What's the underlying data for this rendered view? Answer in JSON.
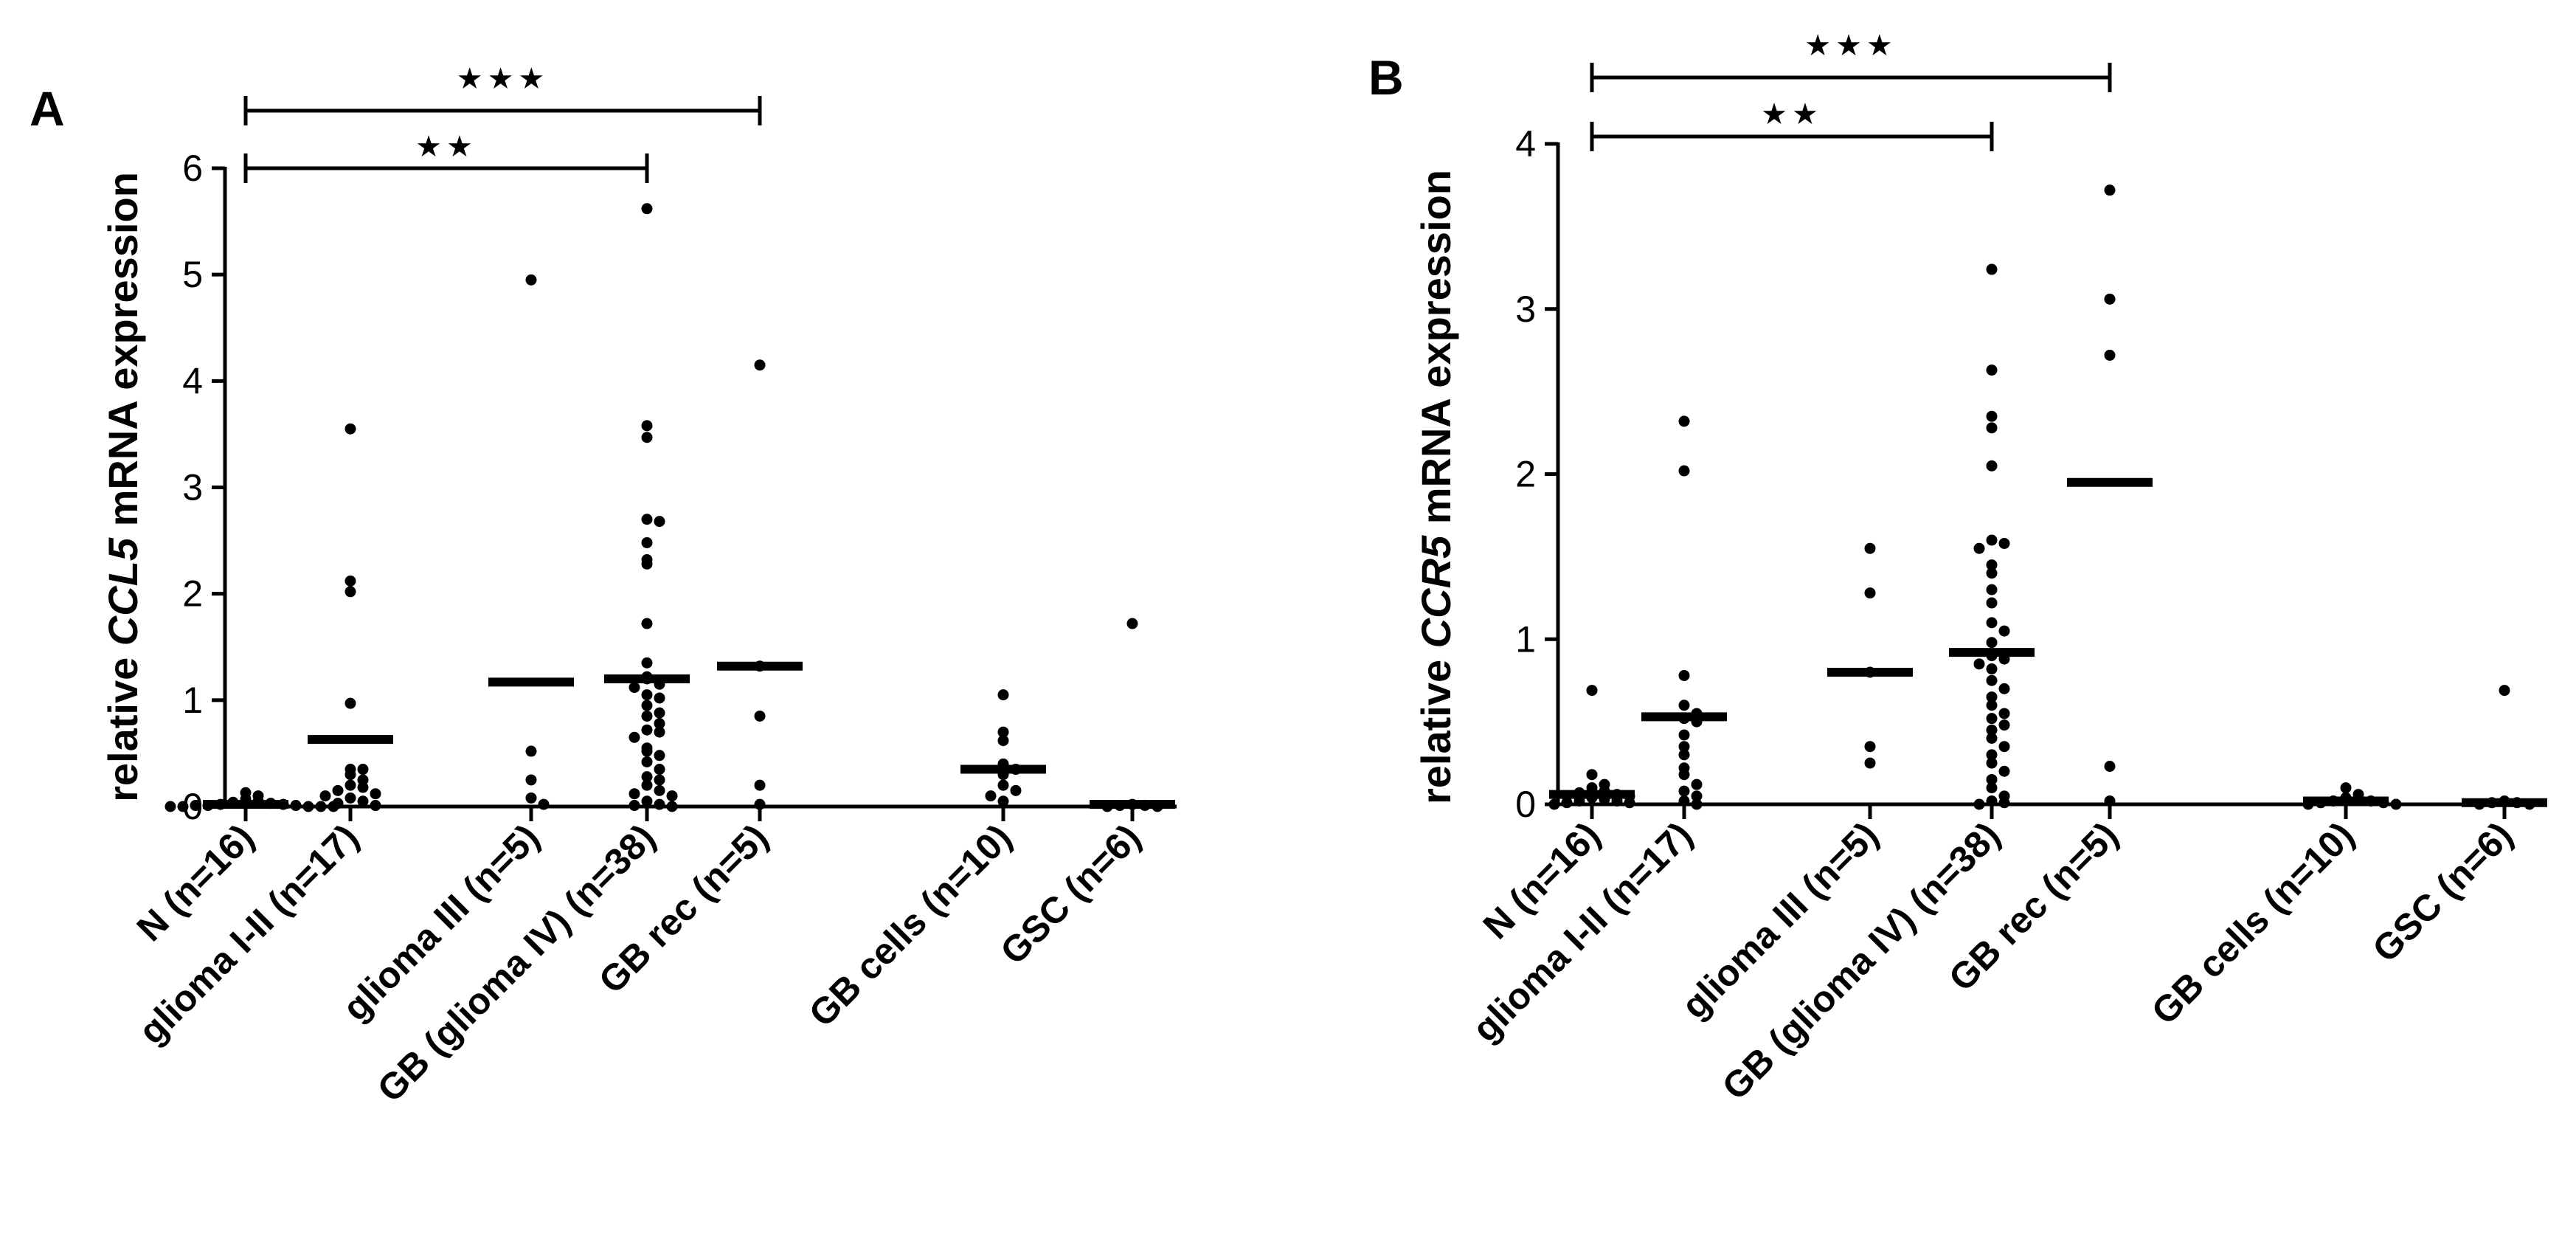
{
  "chart_data": [
    {
      "panel_label": "A",
      "type": "scatter",
      "gene": "CCL5",
      "ylabel_prefix": "relative ",
      "ylabel_suffix": " mRNA expression",
      "ylim": [
        0,
        6
      ],
      "yticks": [
        "0",
        "1",
        "2",
        "3",
        "4",
        "5",
        "6"
      ],
      "categories": [
        {
          "label": "N (n=16)",
          "median": 0.02,
          "points": [
            0.13,
            0.1,
            0.07,
            0.05,
            0.04,
            0.03,
            0.02,
            0.02,
            0.01,
            0.01,
            0.01,
            0,
            0,
            0,
            0,
            0
          ]
        },
        {
          "label": "glioma I-II (n=17)",
          "median": 0.63,
          "points": [
            3.55,
            2.12,
            2.02,
            0.97,
            0.35,
            0.35,
            0.3,
            0.25,
            0.2,
            0.18,
            0.15,
            0.12,
            0.1,
            0.08,
            0.05,
            0.03,
            0.01
          ]
        },
        {
          "label": "glioma III (n=5)",
          "median": 1.17,
          "points": [
            4.95,
            0.52,
            0.25,
            0.08,
            0.02
          ]
        },
        {
          "label": "GB (glioma IV) (n=38)",
          "median": 1.2,
          "points": [
            5.62,
            3.58,
            3.47,
            2.7,
            2.68,
            2.48,
            2.32,
            2.28,
            1.72,
            1.35,
            1.22,
            1.2,
            1.15,
            1.12,
            1.05,
            1.02,
            0.95,
            0.88,
            0.85,
            0.78,
            0.72,
            0.7,
            0.65,
            0.55,
            0.52,
            0.48,
            0.42,
            0.35,
            0.28,
            0.25,
            0.2,
            0.15,
            0.12,
            0.1,
            0.05,
            0.02,
            0.01,
            0
          ]
        },
        {
          "label": "GB rec (n=5)",
          "median": 1.32,
          "points": [
            4.15,
            1.32,
            0.85,
            0.2,
            0.02
          ]
        },
        {
          "label": "GB cells (n=10)",
          "median": 0.35,
          "points": [
            1.05,
            0.7,
            0.62,
            0.4,
            0.35,
            0.3,
            0.2,
            0.15,
            0.1,
            0.05
          ]
        },
        {
          "label": "GSC (n=6)",
          "median": 0.02,
          "points": [
            1.72,
            0.02,
            0.01,
            0.01,
            0,
            0
          ]
        }
      ],
      "significance": [
        {
          "stars": "★★",
          "from": 0,
          "to": 3
        },
        {
          "stars": "★★★",
          "from": 0,
          "to": 4
        }
      ]
    },
    {
      "panel_label": "B",
      "type": "scatter",
      "gene": "CCR5",
      "ylabel_prefix": "relative ",
      "ylabel_suffix": " mRNA expression",
      "ylim": [
        0,
        4
      ],
      "yticks": [
        "0",
        "1",
        "2",
        "3",
        "4"
      ],
      "categories": [
        {
          "label": "N (n=16)",
          "median": 0.06,
          "points": [
            0.69,
            0.18,
            0.12,
            0.1,
            0.08,
            0.07,
            0.06,
            0.05,
            0.05,
            0.04,
            0.03,
            0.02,
            0.02,
            0.01,
            0.01,
            0
          ]
        },
        {
          "label": "glioma I-II (n=17)",
          "median": 0.53,
          "points": [
            2.32,
            2.02,
            0.78,
            0.6,
            0.55,
            0.52,
            0.5,
            0.42,
            0.35,
            0.3,
            0.22,
            0.18,
            0.12,
            0.08,
            0.05,
            0.02,
            0
          ]
        },
        {
          "label": "glioma III (n=5)",
          "median": 0.8,
          "points": [
            1.55,
            1.28,
            0.8,
            0.35,
            0.25
          ]
        },
        {
          "label": "GB (glioma IV) (n=38)",
          "median": 0.92,
          "points": [
            3.24,
            2.63,
            2.35,
            2.28,
            2.05,
            1.6,
            1.58,
            1.55,
            1.45,
            1.4,
            1.3,
            1.22,
            1.1,
            1.05,
            0.98,
            0.9,
            0.88,
            0.85,
            0.82,
            0.75,
            0.7,
            0.65,
            0.6,
            0.55,
            0.52,
            0.48,
            0.45,
            0.4,
            0.35,
            0.3,
            0.25,
            0.2,
            0.15,
            0.1,
            0.05,
            0.02,
            0.01,
            0
          ]
        },
        {
          "label": "GB rec (n=5)",
          "median": 1.95,
          "points": [
            3.72,
            3.06,
            2.72,
            0.23,
            0.02
          ]
        },
        {
          "label": "GB cells (n=10)",
          "median": 0.02,
          "points": [
            0.1,
            0.06,
            0.04,
            0.03,
            0.02,
            0.02,
            0.01,
            0.01,
            0,
            0
          ]
        },
        {
          "label": "GSC  (n=6)",
          "median": 0.01,
          "points": [
            0.69,
            0.02,
            0.01,
            0.01,
            0,
            0
          ]
        }
      ],
      "significance": [
        {
          "stars": "★★",
          "from": 0,
          "to": 3
        },
        {
          "stars": "★★★",
          "from": 0,
          "to": 4
        }
      ]
    }
  ]
}
